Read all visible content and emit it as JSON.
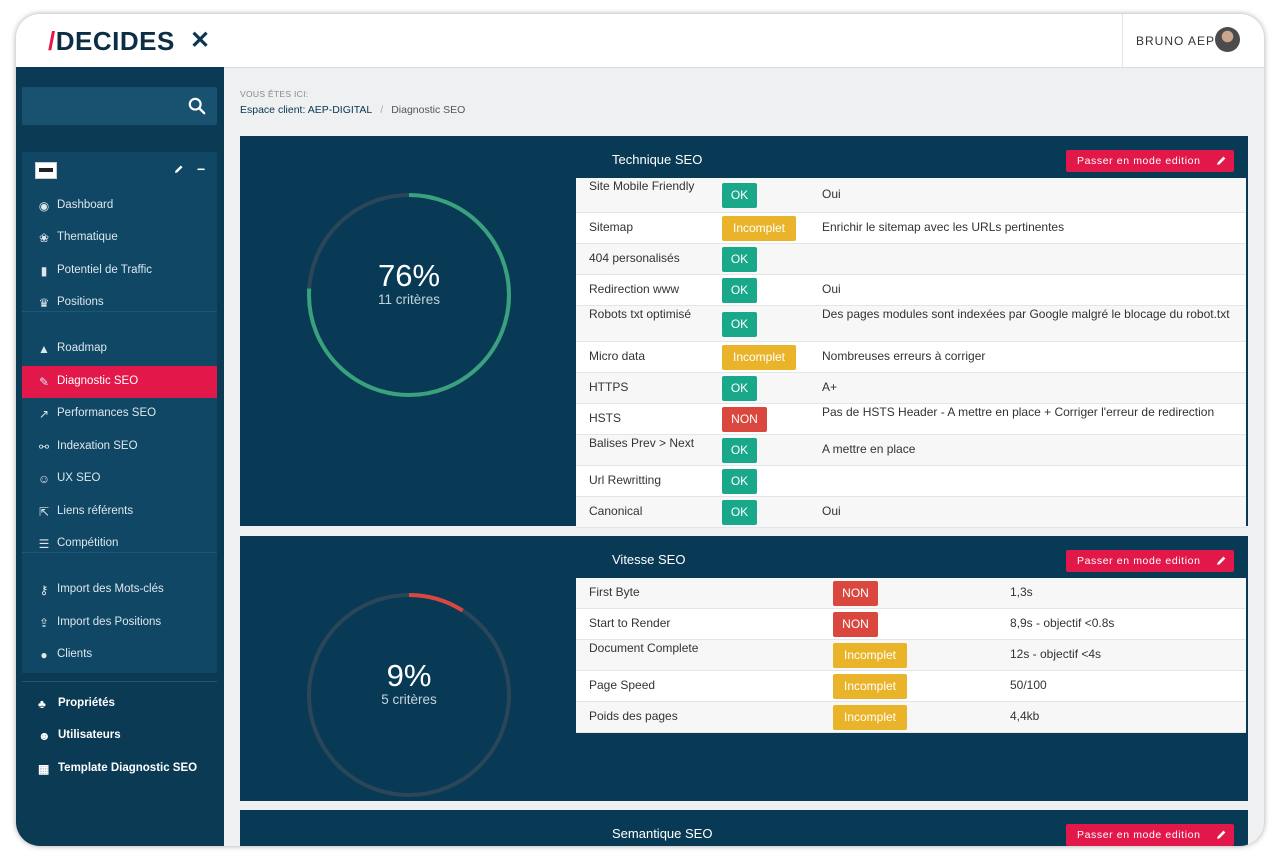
{
  "header": {
    "logo_slash": "/",
    "logo_text": "DECIDES",
    "close_glyph": "✕",
    "user_name": "BRUNO AEP"
  },
  "colors": {
    "primary_dark": "#083a56",
    "accent": "#e3184a",
    "ok": "#19a98a",
    "incomplet": "#e9b42a",
    "non": "#d9473f"
  },
  "sidebar": {
    "search_placeholder": "",
    "items": [
      {
        "label": "Dashboard",
        "icon": "dashboard-icon",
        "glyph": "◉"
      },
      {
        "label": "Thematique",
        "icon": "brain-icon",
        "glyph": "❀"
      },
      {
        "label": "Potentiel de Traffic",
        "icon": "traffic-light-icon",
        "glyph": "▮"
      },
      {
        "label": "Positions",
        "icon": "trophy-icon",
        "glyph": "♛"
      },
      {
        "label": "Roadmap",
        "icon": "road-icon",
        "glyph": "▲"
      },
      {
        "label": "Diagnostic SEO",
        "icon": "wrench-icon",
        "glyph": "✎",
        "active": true
      },
      {
        "label": "Performances SEO",
        "icon": "line-chart-icon",
        "glyph": "↗"
      },
      {
        "label": "Indexation SEO",
        "icon": "sitemap-icon",
        "glyph": "⚯"
      },
      {
        "label": "UX SEO",
        "icon": "smile-icon",
        "glyph": "☺"
      },
      {
        "label": "Liens référents",
        "icon": "external-link-icon",
        "glyph": "⇱"
      },
      {
        "label": "Compétition",
        "icon": "list-icon",
        "glyph": "☰"
      },
      {
        "label": "Import des Mots-clés",
        "icon": "key-icon",
        "glyph": "⚷"
      },
      {
        "label": "Import des Positions",
        "icon": "upload-icon",
        "glyph": "⇪"
      },
      {
        "label": "Clients",
        "icon": "user-icon",
        "glyph": "●"
      }
    ],
    "bottom_items": [
      {
        "label": "Propriétés",
        "icon": "sitemap-icon",
        "glyph": "♣"
      },
      {
        "label": "Utilisateurs",
        "icon": "users-icon",
        "glyph": "☻"
      },
      {
        "label": "Template Diagnostic SEO",
        "icon": "table-icon",
        "glyph": "▦"
      }
    ]
  },
  "breadcrumb": {
    "title": "VOUS ÊTES ICI:",
    "link": "Espace client: AEP-DIGITAL",
    "separator": "/",
    "current": "Diagnostic SEO"
  },
  "cards": [
    {
      "title": "Technique SEO",
      "edit_label": "Passer en mode edition",
      "percent": 76,
      "percent_label": "76%",
      "criteria_label": "11 critères",
      "gauge_color": "#3aa17e",
      "rows": [
        {
          "criterion": "Site Mobile Friendly",
          "status": "OK",
          "comment": "Oui"
        },
        {
          "criterion": "Sitemap",
          "status": "Incomplet",
          "comment": "Enrichir le sitemap avec les URLs pertinentes"
        },
        {
          "criterion": "404 personalisés",
          "status": "OK",
          "comment": ""
        },
        {
          "criterion": "Redirection www",
          "status": "OK",
          "comment": "Oui"
        },
        {
          "criterion": "Robots txt optimisé",
          "status": "OK",
          "comment": "Des pages modules sont indexées par Google malgré le blocage du robot.txt"
        },
        {
          "criterion": "Micro data",
          "status": "Incomplet",
          "comment": "Nombreuses erreurs à corriger"
        },
        {
          "criterion": "HTTPS",
          "status": "OK",
          "comment": "A+"
        },
        {
          "criterion": "HSTS",
          "status": "NON",
          "comment": "Pas de HSTS Header - A mettre en place + Corriger l'erreur de redirection"
        },
        {
          "criterion": "Balises Prev > Next",
          "status": "OK",
          "comment": "A mettre en place"
        },
        {
          "criterion": "Url Rewritting",
          "status": "OK",
          "comment": ""
        },
        {
          "criterion": "Canonical",
          "status": "OK",
          "comment": "Oui"
        }
      ]
    },
    {
      "title": "Vitesse SEO",
      "edit_label": "Passer en mode edition",
      "percent": 9,
      "percent_label": "9%",
      "criteria_label": "5 critères",
      "gauge_color": "#d9473f",
      "rows": [
        {
          "criterion": "First Byte",
          "status": "NON",
          "comment": "1,3s"
        },
        {
          "criterion": "Start to Render",
          "status": "NON",
          "comment": "8,9s - objectif <0.8s"
        },
        {
          "criterion": "Document Complete",
          "status": "Incomplet",
          "comment": "12s - objectif <4s"
        },
        {
          "criterion": "Page Speed",
          "status": "Incomplet",
          "comment": "50/100"
        },
        {
          "criterion": "Poids des pages",
          "status": "Incomplet",
          "comment": "4,4kb"
        }
      ]
    },
    {
      "title": "Semantique SEO",
      "edit_label": "Passer en mode edition"
    }
  ]
}
